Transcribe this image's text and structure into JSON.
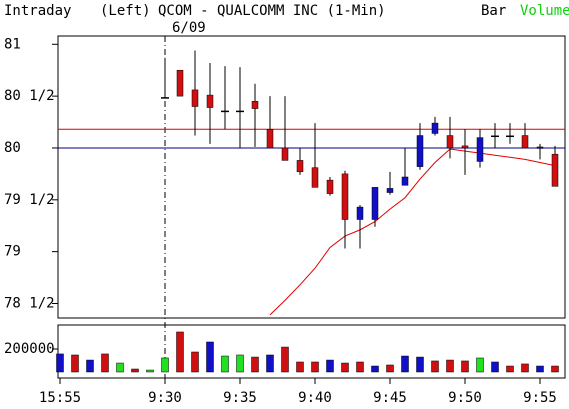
{
  "header": {
    "mode": "Intraday",
    "axis_side": "(Left)",
    "title": "QCOM - QUALCOMM INC  (1-Min)",
    "date": "6/09",
    "style": "Bar",
    "study": "Volume"
  },
  "chart_data": [
    {
      "type": "candlestick",
      "categories": [
        "15:55",
        null,
        null,
        null,
        null,
        null,
        null,
        "9:30",
        null,
        null,
        null,
        null,
        "9:35",
        null,
        null,
        null,
        null,
        "9:40",
        null,
        null,
        null,
        null,
        "9:45",
        null,
        null,
        null,
        null,
        "9:50",
        null,
        null,
        null,
        null,
        "9:55",
        null
      ],
      "open": [
        null,
        null,
        null,
        null,
        null,
        null,
        null,
        80.49,
        80.75,
        80.56,
        80.51,
        80.36,
        80.36,
        80.45,
        80.18,
        80.0,
        79.88,
        79.81,
        79.69,
        79.75,
        79.31,
        79.31,
        79.57,
        79.64,
        79.82,
        80.14,
        80.12,
        80.02,
        79.87,
        80.12,
        80.12,
        80.12,
        80.0,
        79.94
      ],
      "high": [
        null,
        null,
        null,
        null,
        null,
        null,
        null,
        80.87,
        80.75,
        80.94,
        80.82,
        80.79,
        80.78,
        80.62,
        80.5,
        80.5,
        80.0,
        80.24,
        79.72,
        79.78,
        79.45,
        79.62,
        79.77,
        80.0,
        80.24,
        80.3,
        80.3,
        80.18,
        80.18,
        80.24,
        80.24,
        80.24,
        80.04,
        80.02
      ],
      "low": [
        null,
        null,
        null,
        null,
        null,
        null,
        null,
        80.48,
        80.5,
        80.12,
        80.04,
        80.18,
        80.0,
        80.01,
        80.0,
        79.88,
        79.74,
        79.62,
        79.54,
        79.03,
        79.03,
        79.24,
        79.55,
        79.64,
        79.79,
        80.12,
        79.9,
        79.74,
        79.81,
        80.0,
        80.04,
        80.0,
        79.89,
        79.63
      ],
      "close": [
        null,
        null,
        null,
        null,
        null,
        null,
        null,
        80.49,
        80.5,
        80.4,
        80.39,
        80.36,
        80.36,
        80.38,
        80.0,
        79.88,
        79.77,
        79.62,
        79.56,
        79.31,
        79.43,
        79.62,
        79.61,
        79.72,
        80.12,
        80.24,
        80.0,
        80.0,
        80.1,
        80.12,
        80.12,
        80.0,
        80.01,
        79.63
      ],
      "up_color": "#1010c8",
      "down_color": "#d01010",
      "flat_color": "#000000",
      "series": [
        {
          "color": "#e00000",
          "values": [
            null,
            null,
            null,
            null,
            null,
            null,
            null,
            null,
            null,
            null,
            null,
            null,
            null,
            null,
            78.39,
            78.53,
            78.68,
            78.84,
            79.04,
            79.15,
            79.21,
            79.29,
            79.41,
            79.52,
            79.7,
            79.86,
            79.99,
            79.97,
            79.95,
            79.93,
            79.91,
            79.89,
            79.86,
            79.83
          ]
        }
      ],
      "hlines": [
        {
          "value": 80.18,
          "color": "#e00000"
        },
        {
          "value": 80,
          "color": "#000080"
        }
      ],
      "ylim": [
        78.36,
        81.08
      ],
      "yticks": [
        {
          "value": 78.5,
          "label": "78 1/2"
        },
        79,
        {
          "value": 79.5,
          "label": "79 1/2"
        },
        80,
        {
          "value": 80.5,
          "label": "80 1/2"
        },
        81
      ]
    },
    {
      "type": "bar",
      "values": [
        157000,
        148000,
        104000,
        157000,
        78000,
        26000,
        17000,
        122000,
        348000,
        174000,
        261000,
        139000,
        148000,
        130000,
        148000,
        217000,
        87000,
        87000,
        104000,
        78000,
        87000,
        52000,
        61000,
        139000,
        130000,
        96000,
        104000,
        96000,
        122000,
        87000,
        52000,
        70000,
        52000,
        52000
      ],
      "colors": [
        "#1010c8",
        "#d01010",
        "#1010c8",
        "#d01010",
        "#20e020",
        "#d01010",
        "#20e020",
        "#20e020",
        "#d01010",
        "#d01010",
        "#1010c8",
        "#20e020",
        "#20e020",
        "#d01010",
        "#1010c8",
        "#d01010",
        "#d01010",
        "#d01010",
        "#1010c8",
        "#d01010",
        "#d01010",
        "#1010c8",
        "#d01010",
        "#1010c8",
        "#1010c8",
        "#d01010",
        "#d01010",
        "#d01010",
        "#20e020",
        "#1010c8",
        "#d01010",
        "#d01010",
        "#1010c8",
        "#d01010"
      ],
      "ylim": [
        0,
        400000
      ],
      "yticks": [
        200000
      ]
    }
  ]
}
